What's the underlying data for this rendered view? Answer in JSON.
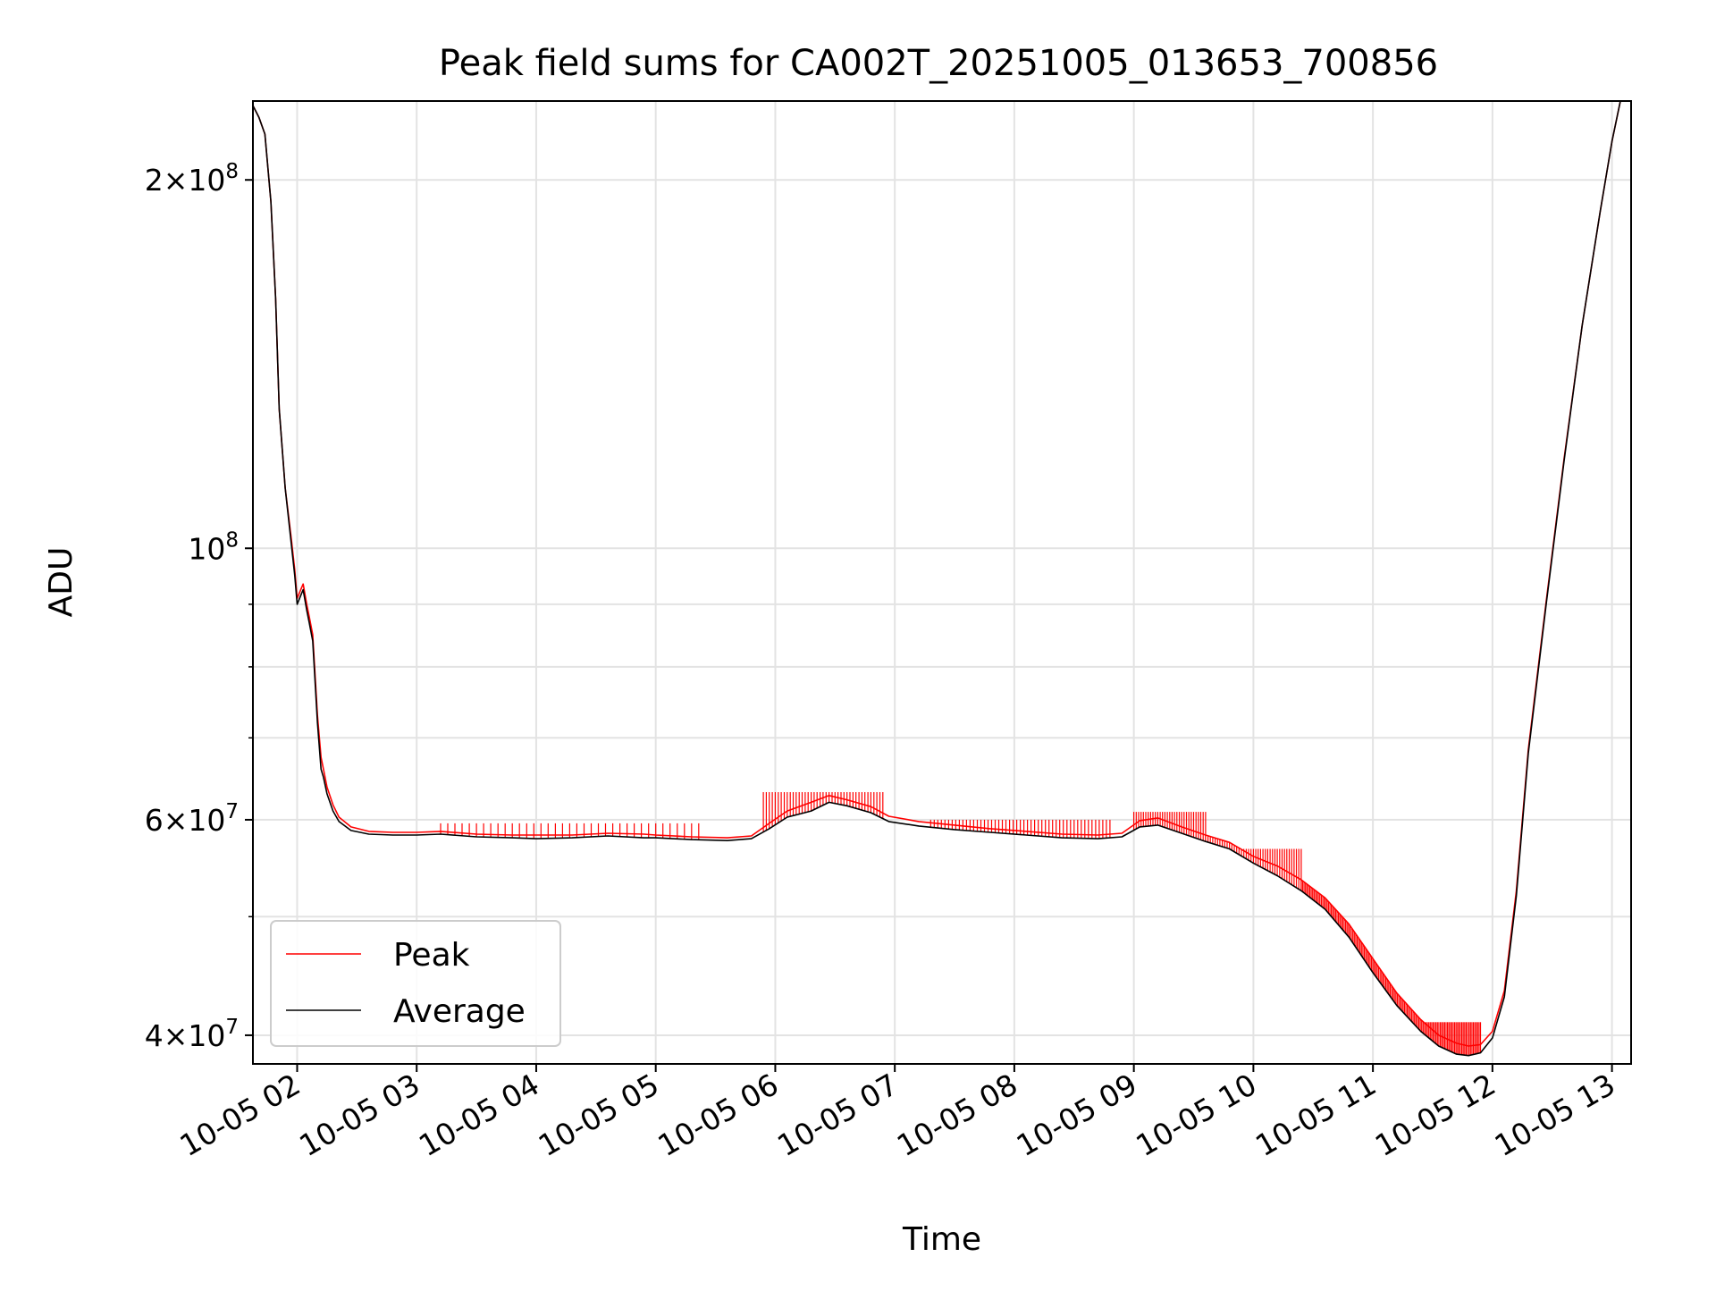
{
  "chart_data": {
    "type": "line",
    "title": "Peak field sums for CA002T_20251005_013653_700856",
    "xlabel": "Time",
    "ylabel": "ADU",
    "yscale": "log",
    "xlim_hours": [
      1.63,
      13.16
    ],
    "ylim": [
      37900000,
      232000000
    ],
    "grid": true,
    "legend_position": "lower-left",
    "x_ticks": [
      {
        "hour": 2,
        "label": "10-05 02"
      },
      {
        "hour": 3,
        "label": "10-05 03"
      },
      {
        "hour": 4,
        "label": "10-05 04"
      },
      {
        "hour": 5,
        "label": "10-05 05"
      },
      {
        "hour": 6,
        "label": "10-05 06"
      },
      {
        "hour": 7,
        "label": "10-05 07"
      },
      {
        "hour": 8,
        "label": "10-05 08"
      },
      {
        "hour": 9,
        "label": "10-05 09"
      },
      {
        "hour": 10,
        "label": "10-05 10"
      },
      {
        "hour": 11,
        "label": "10-05 11"
      },
      {
        "hour": 12,
        "label": "10-05 12"
      },
      {
        "hour": 13,
        "label": "10-05 13"
      }
    ],
    "y_ticks": [
      {
        "value": 40000000,
        "mantissa": "4",
        "base": "10",
        "exponent": "7"
      },
      {
        "value": 60000000,
        "mantissa": "6",
        "base": "10",
        "exponent": "7"
      },
      {
        "value": 100000000,
        "mantissa": "",
        "base": "10",
        "exponent": "8"
      },
      {
        "value": 200000000,
        "mantissa": "2",
        "base": "10",
        "exponent": "8"
      }
    ],
    "y_minor_ticks": [
      50000000,
      70000000,
      80000000,
      90000000
    ],
    "series": [
      {
        "name": "Average",
        "color": "#000000",
        "hours": [
          1.63,
          1.68,
          1.73,
          1.78,
          1.82,
          1.85,
          1.9,
          1.95,
          1.98,
          2.0,
          2.03,
          2.05,
          2.08,
          2.1,
          2.13,
          2.17,
          2.2,
          2.22,
          2.25,
          2.3,
          2.35,
          2.45,
          2.6,
          2.8,
          3.0,
          3.2,
          3.5,
          3.8,
          4.0,
          4.3,
          4.6,
          4.9,
          5.0,
          5.3,
          5.6,
          5.8,
          5.95,
          6.1,
          6.3,
          6.45,
          6.6,
          6.8,
          6.95,
          7.2,
          7.5,
          7.8,
          8.1,
          8.4,
          8.7,
          8.9,
          9.05,
          9.2,
          9.4,
          9.6,
          9.8,
          10.0,
          10.2,
          10.4,
          10.6,
          10.8,
          11.0,
          11.2,
          11.4,
          11.55,
          11.7,
          11.8,
          11.9,
          12.0,
          12.1,
          12.2,
          12.3,
          12.45,
          12.6,
          12.75,
          12.9,
          13.0,
          13.07
        ],
        "values": [
          230000000,
          225000000,
          218000000,
          192000000,
          160000000,
          130000000,
          112000000,
          101000000,
          95000000,
          90000000,
          91500000,
          92500000,
          89000000,
          87000000,
          84000000,
          72000000,
          66000000,
          65000000,
          63000000,
          61000000,
          59800000,
          58800000,
          58400000,
          58300000,
          58300000,
          58400000,
          58100000,
          58000000,
          57900000,
          58000000,
          58200000,
          58000000,
          58000000,
          57800000,
          57700000,
          57900000,
          59000000,
          60300000,
          61000000,
          62000000,
          61600000,
          60800000,
          59800000,
          59300000,
          58900000,
          58600000,
          58300000,
          58000000,
          57900000,
          58100000,
          59200000,
          59400000,
          58500000,
          57600000,
          56800000,
          55300000,
          54000000,
          52500000,
          50700000,
          48100000,
          45000000,
          42300000,
          40300000,
          39200000,
          38600000,
          38500000,
          38700000,
          39800000,
          43000000,
          52000000,
          68000000,
          90000000,
          118000000,
          152000000,
          188000000,
          215000000,
          232000000
        ]
      },
      {
        "name": "Peak",
        "color": "#ff0000",
        "hours": [
          1.63,
          1.68,
          1.73,
          1.78,
          1.82,
          1.85,
          1.9,
          1.95,
          1.98,
          2.0,
          2.03,
          2.05,
          2.08,
          2.1,
          2.13,
          2.17,
          2.2,
          2.22,
          2.25,
          2.3,
          2.35,
          2.45,
          2.6,
          2.8,
          3.0,
          3.2,
          3.5,
          3.8,
          4.0,
          4.3,
          4.6,
          4.9,
          5.0,
          5.3,
          5.6,
          5.8,
          5.95,
          6.1,
          6.3,
          6.45,
          6.6,
          6.8,
          6.95,
          7.2,
          7.5,
          7.8,
          8.1,
          8.4,
          8.7,
          8.9,
          9.05,
          9.2,
          9.4,
          9.6,
          9.8,
          10.0,
          10.2,
          10.4,
          10.6,
          10.8,
          11.0,
          11.2,
          11.4,
          11.55,
          11.7,
          11.8,
          11.9,
          12.0,
          12.1,
          12.2,
          12.3,
          12.45,
          12.6,
          12.75,
          12.9,
          13.0,
          13.07
        ],
        "values": [
          230000000,
          225000000,
          218000000,
          192000000,
          160000000,
          130000000,
          112000000,
          102000000,
          96000000,
          91000000,
          92500000,
          93500000,
          90000000,
          88000000,
          85000000,
          73000000,
          67500000,
          66000000,
          63800000,
          61700000,
          60300000,
          59200000,
          58700000,
          58600000,
          58600000,
          58700000,
          58400000,
          58300000,
          58300000,
          58300000,
          58500000,
          58400000,
          58300000,
          58100000,
          58000000,
          58200000,
          59600000,
          61000000,
          62000000,
          62800000,
          62300000,
          61500000,
          60400000,
          59800000,
          59400000,
          59000000,
          58700000,
          58400000,
          58300000,
          58500000,
          59900000,
          60200000,
          59200000,
          58300000,
          57500000,
          56000000,
          55000000,
          53600000,
          51800000,
          49300000,
          46200000,
          43300000,
          41200000,
          40000000,
          39400000,
          39200000,
          39300000,
          40300000,
          43500000,
          52500000,
          68500000,
          90500000,
          118500000,
          152000000,
          188000000,
          215000000,
          232000000
        ]
      }
    ],
    "spike_overlay": {
      "series": "Peak",
      "color": "#ff0000",
      "ranges": [
        {
          "from": 3.2,
          "to": 5.4,
          "step": 0.06,
          "value": 59600000
        },
        {
          "from": 5.9,
          "to": 6.9,
          "step": 0.025,
          "value": 63200000
        },
        {
          "from": 7.3,
          "to": 8.8,
          "step": 0.03,
          "value": 60000000
        },
        {
          "from": 9.0,
          "to": 9.6,
          "step": 0.02,
          "value": 60900000
        },
        {
          "from": 9.6,
          "to": 10.4,
          "step": 0.02,
          "value": 56800000
        },
        {
          "from": 10.4,
          "to": 11.9,
          "step": 0.012,
          "value": 41000000
        }
      ]
    }
  }
}
